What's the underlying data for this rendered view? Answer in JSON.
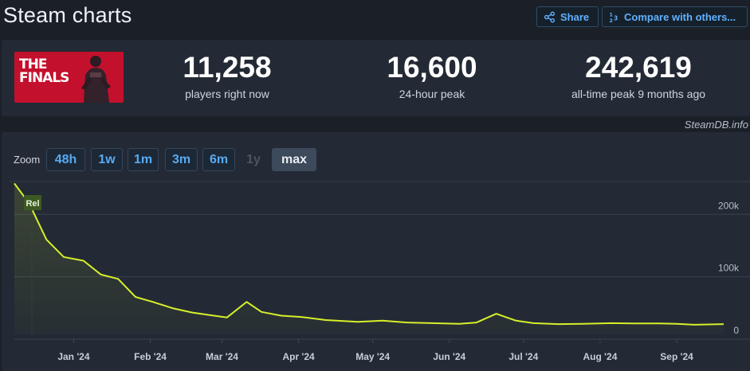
{
  "header": {
    "title": "Steam charts",
    "share_label": "Share",
    "compare_label": "Compare with others..."
  },
  "game": {
    "logo_text_line1": "THE",
    "logo_text_line2": "FINALS",
    "brand_color": "#c3102d"
  },
  "stats": {
    "now_value": "11,258",
    "now_label": "players right now",
    "peak24_value": "16,600",
    "peak24_label": "24-hour peak",
    "alltime_value": "242,619",
    "alltime_label": "all-time peak 9 months ago"
  },
  "credit": "SteamDB.info",
  "zoom": {
    "label": "Zoom",
    "options": [
      "48h",
      "1w",
      "1m",
      "3m",
      "6m",
      "1y",
      "max"
    ],
    "selected": "max",
    "disabled": [
      "1y"
    ]
  },
  "chart_data": {
    "type": "line",
    "line_color": "#d6ef2a",
    "annotation": "Rel",
    "y_ticks": [
      "0",
      "100k",
      "200k"
    ],
    "ylim": [
      0,
      245000
    ],
    "x_ticks": [
      {
        "label": "Jan '24",
        "date": "2024-01-01"
      },
      {
        "label": "Feb '24",
        "date": "2024-02-01"
      },
      {
        "label": "Mar '24",
        "date": "2024-03-01"
      },
      {
        "label": "Apr '24",
        "date": "2024-04-01"
      },
      {
        "label": "May '24",
        "date": "2024-05-01"
      },
      {
        "label": "Jun '24",
        "date": "2024-06-01"
      },
      {
        "label": "Jul '24",
        "date": "2024-07-01"
      },
      {
        "label": "Aug '24",
        "date": "2024-08-01"
      },
      {
        "label": "Sep '24",
        "date": "2024-09-01"
      }
    ],
    "xlim": [
      "2023-12-08",
      "2024-09-20"
    ],
    "series": [
      {
        "points": [
          [
            "2023-12-08",
            242000
          ],
          [
            "2023-12-14",
            210000
          ],
          [
            "2023-12-21",
            152000
          ],
          [
            "2023-12-28",
            124000
          ],
          [
            "2024-01-05",
            118000
          ],
          [
            "2024-01-12",
            96000
          ],
          [
            "2024-01-19",
            89000
          ],
          [
            "2024-01-26",
            60000
          ],
          [
            "2024-02-02",
            52000
          ],
          [
            "2024-02-10",
            42000
          ],
          [
            "2024-02-18",
            35000
          ],
          [
            "2024-02-25",
            31000
          ],
          [
            "2024-03-03",
            27000
          ],
          [
            "2024-03-11",
            52000
          ],
          [
            "2024-03-17",
            36000
          ],
          [
            "2024-03-25",
            30000
          ],
          [
            "2024-04-02",
            28000
          ],
          [
            "2024-04-12",
            23000
          ],
          [
            "2024-04-25",
            20000
          ],
          [
            "2024-05-05",
            22000
          ],
          [
            "2024-05-15",
            19000
          ],
          [
            "2024-05-25",
            18000
          ],
          [
            "2024-06-05",
            17000
          ],
          [
            "2024-06-12",
            19000
          ],
          [
            "2024-06-20",
            33000
          ],
          [
            "2024-06-28",
            22000
          ],
          [
            "2024-07-05",
            18000
          ],
          [
            "2024-07-15",
            16500
          ],
          [
            "2024-07-25",
            17000
          ],
          [
            "2024-08-05",
            18000
          ],
          [
            "2024-08-15",
            17500
          ],
          [
            "2024-08-25",
            17500
          ],
          [
            "2024-09-01",
            17000
          ],
          [
            "2024-09-08",
            15500
          ],
          [
            "2024-09-20",
            16500
          ]
        ]
      }
    ]
  }
}
